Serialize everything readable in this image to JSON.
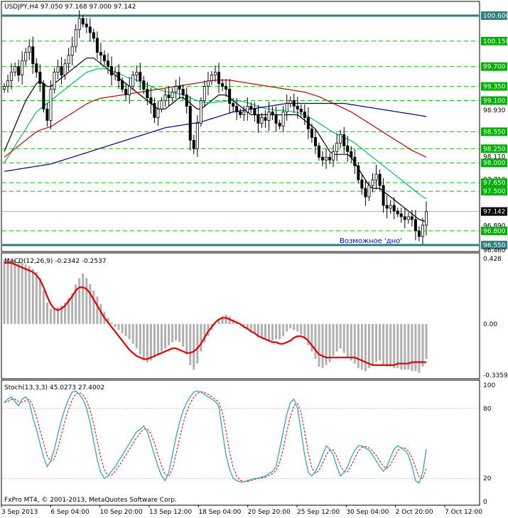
{
  "price_header": "USDJPY,H4  97.050 97.168 97.000 97.142",
  "macd_header": "MACD(12,26,9) -0.2342 -0.2537",
  "stoch_header": "Stoch(13,3,3) 45.0273 27.4002",
  "copyright": "FxPro MT4, © 2001-2013, MetaQuotes Software Corp.",
  "annotation": "Возможное 'дно'",
  "colors": {
    "candle": "#000000",
    "ma_fast": "#000000",
    "ma_green": "#00c060",
    "ma_red": "#c00000",
    "ma_blue": "#000080",
    "level_green": "#00c000",
    "level_thick": "#2f7f7f",
    "macd_hist": "#b0b0b0",
    "macd_signal": "#e00000",
    "stoch_main": "#20a0c0",
    "stoch_signal": "#e00000",
    "current_price_bg": "#000000",
    "level_label_bg": "#00b000",
    "annotation": "#0000c0"
  },
  "chart_data": [
    {
      "type": "candlestick",
      "symbol": "USDJPY",
      "timeframe": "H4",
      "ylim": [
        96.46,
        100.8
      ],
      "price_axis_labels": [
        "100.600",
        "100.150",
        "99.700",
        "99.350",
        "99.100",
        "98.930",
        "98.550",
        "98.250",
        "98.110",
        "98.000",
        "97.710",
        "97.650",
        "97.500",
        "97.142",
        "96.890",
        "96.800",
        "96.550",
        "96.460"
      ],
      "current_price": 97.142,
      "key_levels": [
        100.6,
        96.55
      ],
      "support_resistance_levels": [
        100.15,
        99.7,
        99.35,
        99.1,
        98.55,
        98.25,
        98.0,
        97.65,
        97.5,
        96.8
      ],
      "x_labels": [
        "3 Sep 2013",
        "6 Sep 04:00",
        "10 Sep 20:00",
        "13 Sep 12:00",
        "18 Sep 04:00",
        "20 Sep 20:00",
        "25 Sep 12:00",
        "30 Sep 04:00",
        "2 Oct 20:00",
        "7 Oct 12:00"
      ],
      "close": [
        99.35,
        99.45,
        99.6,
        99.7,
        99.55,
        99.8,
        99.95,
        100.05,
        99.75,
        99.6,
        99.4,
        98.95,
        98.75,
        99.3,
        99.6,
        99.7,
        99.55,
        99.75,
        99.9,
        100.05,
        100.35,
        100.55,
        100.45,
        100.4,
        100.3,
        100.2,
        99.95,
        99.9,
        99.8,
        99.7,
        99.55,
        99.6,
        99.45,
        99.3,
        99.2,
        99.35,
        99.55,
        99.6,
        99.45,
        99.3,
        99.15,
        99.05,
        98.8,
        98.95,
        99.1,
        99.2,
        99.15,
        99.25,
        99.35,
        99.3,
        99.2,
        99.0,
        98.4,
        98.25,
        98.7,
        99.1,
        99.35,
        99.45,
        99.55,
        99.6,
        99.4,
        99.35,
        99.3,
        99.05,
        99.0,
        98.9,
        98.85,
        98.9,
        99.0,
        98.95,
        98.85,
        98.7,
        98.8,
        98.75,
        98.9,
        98.85,
        98.7,
        98.65,
        98.9,
        99.05,
        99.1,
        99.0,
        98.95,
        98.9,
        98.8,
        98.6,
        98.45,
        98.3,
        98.1,
        98.05,
        98.1,
        98.05,
        98.2,
        98.35,
        98.5,
        98.3,
        98.2,
        98.1,
        97.95,
        97.7,
        97.55,
        97.4,
        97.6,
        97.7,
        97.8,
        97.6,
        97.25,
        97.2,
        97.25,
        97.15,
        97.1,
        97.05,
        97.0,
        97.05,
        97.0,
        96.8,
        96.7,
        96.9,
        97.14
      ],
      "series": [
        {
          "name": "",
          "kind": "ma",
          "values": [
            98.2,
            98.35,
            98.5,
            98.65,
            98.8,
            98.95,
            99.1,
            99.2,
            99.3,
            99.4,
            99.45,
            99.4,
            99.35,
            99.35,
            99.4,
            99.45,
            99.5,
            99.55,
            99.6,
            99.65,
            99.7,
            99.75,
            99.8,
            99.85,
            99.85,
            99.85,
            99.8,
            99.75,
            99.7,
            99.65,
            99.6,
            99.55,
            99.5,
            99.45,
            99.4,
            99.35,
            99.3,
            99.25,
            99.2,
            99.15,
            99.1,
            99.05,
            99.0,
            98.95,
            98.95,
            98.95,
            99.0,
            99.05,
            99.1,
            99.15,
            99.15,
            99.1,
            99.05,
            99.0,
            98.95,
            98.95,
            99.0,
            99.05,
            99.1,
            99.15,
            99.2,
            99.2,
            99.2,
            99.15,
            99.1,
            99.05,
            99.0,
            98.95,
            98.9,
            98.85,
            98.85,
            98.85,
            98.85,
            98.85,
            98.85,
            98.85,
            98.85,
            98.85,
            98.85,
            98.85,
            98.85,
            98.85,
            98.85,
            98.8,
            98.75,
            98.7,
            98.65,
            98.6,
            98.5,
            98.4,
            98.3,
            98.2,
            98.15,
            98.15,
            98.15,
            98.15,
            98.15,
            98.1,
            98.0,
            97.9,
            97.8,
            97.7,
            97.6,
            97.55,
            97.55,
            97.55,
            97.5,
            97.45,
            97.4,
            97.35,
            97.3,
            97.25,
            97.2,
            97.15,
            97.1,
            97.05,
            97.0,
            96.98,
            96.96
          ]
        },
        {
          "name": "",
          "kind": "ma",
          "values": [
            98.0,
            98.1,
            98.2,
            98.3,
            98.4,
            98.5,
            98.6,
            98.7,
            98.8,
            98.9,
            98.95,
            99.0,
            99.05,
            99.1,
            99.15,
            99.2,
            99.25,
            99.3,
            99.35,
            99.4,
            99.45,
            99.5,
            99.55,
            99.6,
            99.62,
            99.64,
            99.66,
            99.66,
            99.66,
            99.65,
            99.63,
            99.6,
            99.58,
            99.55,
            99.52,
            99.5,
            99.48,
            99.46,
            99.43,
            99.4,
            99.38,
            99.35,
            99.32,
            99.3,
            99.28,
            99.26,
            99.25,
            99.24,
            99.23,
            99.22,
            99.2,
            99.18,
            99.15,
            99.12,
            99.1,
            99.08,
            99.07,
            99.06,
            99.06,
            99.07,
            99.08,
            99.08,
            99.09,
            99.1,
            99.1,
            99.1,
            99.09,
            99.08,
            99.06,
            99.04,
            99.02,
            99.0,
            98.98,
            98.96,
            98.95,
            98.94,
            98.93,
            98.93,
            98.93,
            98.92,
            98.91,
            98.9,
            98.89,
            98.87,
            98.85,
            98.82,
            98.78,
            98.74,
            98.7,
            98.66,
            98.62,
            98.58,
            98.54,
            98.51,
            98.48,
            98.45,
            98.42,
            98.39,
            98.35,
            98.3,
            98.25,
            98.2,
            98.15,
            98.1,
            98.05,
            98.0,
            97.95,
            97.9,
            97.85,
            97.8,
            97.75,
            97.7,
            97.65,
            97.6,
            97.55,
            97.5,
            97.45,
            97.4,
            97.37
          ]
        },
        {
          "name": "",
          "kind": "ma",
          "values": [
            98.1,
            98.15,
            98.2,
            98.25,
            98.3,
            98.35,
            98.4,
            98.45,
            98.5,
            98.55,
            98.58,
            98.6,
            98.62,
            98.64,
            98.68,
            98.72,
            98.76,
            98.8,
            98.84,
            98.88,
            98.92,
            98.96,
            99.0,
            99.04,
            99.07,
            99.1,
            99.12,
            99.14,
            99.15,
            99.16,
            99.17,
            99.18,
            99.19,
            99.2,
            99.21,
            99.22,
            99.23,
            99.24,
            99.25,
            99.26,
            99.27,
            99.28,
            99.29,
            99.3,
            99.31,
            99.32,
            99.33,
            99.34,
            99.35,
            99.36,
            99.37,
            99.38,
            99.39,
            99.4,
            99.41,
            99.42,
            99.43,
            99.44,
            99.45,
            99.46,
            99.46,
            99.46,
            99.46,
            99.46,
            99.45,
            99.44,
            99.43,
            99.42,
            99.41,
            99.4,
            99.39,
            99.38,
            99.37,
            99.36,
            99.35,
            99.34,
            99.33,
            99.32,
            99.31,
            99.3,
            99.29,
            99.28,
            99.27,
            99.26,
            99.25,
            99.23,
            99.21,
            99.19,
            99.17,
            99.14,
            99.11,
            99.08,
            99.05,
            99.02,
            98.99,
            98.96,
            98.93,
            98.9,
            98.86,
            98.82,
            98.78,
            98.74,
            98.7,
            98.66,
            98.62,
            98.58,
            98.54,
            98.5,
            98.46,
            98.42,
            98.38,
            98.34,
            98.3,
            98.26,
            98.22,
            98.19,
            98.16,
            98.13,
            98.1
          ]
        },
        {
          "name": "",
          "kind": "ma",
          "values": [
            97.85,
            97.86,
            97.87,
            97.88,
            97.89,
            97.9,
            97.91,
            97.92,
            97.93,
            97.94,
            97.95,
            97.96,
            97.97,
            97.98,
            98.0,
            98.02,
            98.04,
            98.06,
            98.08,
            98.1,
            98.12,
            98.14,
            98.16,
            98.18,
            98.2,
            98.22,
            98.24,
            98.26,
            98.28,
            98.3,
            98.32,
            98.34,
            98.36,
            98.38,
            98.4,
            98.42,
            98.44,
            98.46,
            98.48,
            98.5,
            98.52,
            98.54,
            98.56,
            98.58,
            98.6,
            98.62,
            98.63,
            98.64,
            98.65,
            98.66,
            98.67,
            98.68,
            98.69,
            98.7,
            98.71,
            98.72,
            98.74,
            98.76,
            98.78,
            98.8,
            98.82,
            98.84,
            98.86,
            98.88,
            98.9,
            98.91,
            98.92,
            98.93,
            98.94,
            98.95,
            98.96,
            98.97,
            98.98,
            98.99,
            99.0,
            99.01,
            99.02,
            99.03,
            99.04,
            99.05,
            99.05,
            99.05,
            99.05,
            99.05,
            99.05,
            99.05,
            99.05,
            99.05,
            99.05,
            99.05,
            99.05,
            99.05,
            99.05,
            99.05,
            99.05,
            99.05,
            99.04,
            99.03,
            99.02,
            99.01,
            99.0,
            98.99,
            98.98,
            98.97,
            98.96,
            98.95,
            98.94,
            98.93,
            98.92,
            98.91,
            98.9,
            98.89,
            98.88,
            98.87,
            98.86,
            98.85,
            98.84,
            98.83,
            98.82
          ]
        }
      ]
    },
    {
      "type": "bar",
      "indicator": "MACD(12,26,9)",
      "ylim": [
        -0.3359,
        0.428
      ],
      "axis_labels": [
        "0.428",
        "0.00",
        "-0.3359"
      ],
      "histogram": [
        0.42,
        0.43,
        0.42,
        0.42,
        0.41,
        0.4,
        0.39,
        0.38,
        0.36,
        0.34,
        0.3,
        0.22,
        0.14,
        0.1,
        0.1,
        0.11,
        0.12,
        0.14,
        0.17,
        0.2,
        0.26,
        0.3,
        0.33,
        0.3,
        0.26,
        0.22,
        0.18,
        0.13,
        0.08,
        0.04,
        0.01,
        -0.02,
        -0.04,
        -0.06,
        -0.08,
        -0.1,
        -0.13,
        -0.16,
        -0.2,
        -0.24,
        -0.25,
        -0.24,
        -0.22,
        -0.2,
        -0.18,
        -0.16,
        -0.14,
        -0.12,
        -0.11,
        -0.12,
        -0.15,
        -0.2,
        -0.27,
        -0.3,
        -0.26,
        -0.18,
        -0.12,
        -0.08,
        -0.04,
        0.0,
        0.03,
        0.05,
        0.06,
        0.05,
        0.03,
        0.01,
        0.0,
        -0.02,
        -0.04,
        -0.05,
        -0.06,
        -0.08,
        -0.09,
        -0.1,
        -0.11,
        -0.11,
        -0.1,
        -0.1,
        -0.08,
        -0.05,
        -0.03,
        -0.04,
        -0.05,
        -0.07,
        -0.1,
        -0.14,
        -0.18,
        -0.23,
        -0.28,
        -0.29,
        -0.27,
        -0.25,
        -0.21,
        -0.18,
        -0.16,
        -0.19,
        -0.22,
        -0.24,
        -0.26,
        -0.29,
        -0.3,
        -0.31,
        -0.29,
        -0.27,
        -0.25,
        -0.24,
        -0.27,
        -0.28,
        -0.28,
        -0.29,
        -0.29,
        -0.3,
        -0.3,
        -0.3,
        -0.31,
        -0.31,
        -0.32,
        -0.28,
        -0.23
      ],
      "signal": [
        0.4,
        0.4,
        0.4,
        0.39,
        0.38,
        0.37,
        0.36,
        0.35,
        0.34,
        0.32,
        0.29,
        0.24,
        0.18,
        0.13,
        0.1,
        0.09,
        0.1,
        0.12,
        0.15,
        0.18,
        0.22,
        0.24,
        0.24,
        0.23,
        0.2,
        0.16,
        0.12,
        0.08,
        0.04,
        0.01,
        -0.02,
        -0.05,
        -0.08,
        -0.11,
        -0.14,
        -0.17,
        -0.19,
        -0.21,
        -0.22,
        -0.23,
        -0.23,
        -0.22,
        -0.21,
        -0.2,
        -0.19,
        -0.18,
        -0.17,
        -0.16,
        -0.16,
        -0.17,
        -0.18,
        -0.19,
        -0.19,
        -0.18,
        -0.16,
        -0.13,
        -0.09,
        -0.05,
        -0.02,
        0.01,
        0.03,
        0.04,
        0.04,
        0.03,
        0.02,
        0.01,
        0.0,
        -0.02,
        -0.03,
        -0.05,
        -0.06,
        -0.08,
        -0.09,
        -0.1,
        -0.11,
        -0.12,
        -0.12,
        -0.13,
        -0.13,
        -0.12,
        -0.11,
        -0.09,
        -0.08,
        -0.08,
        -0.09,
        -0.11,
        -0.14,
        -0.17,
        -0.2,
        -0.21,
        -0.22,
        -0.22,
        -0.22,
        -0.22,
        -0.22,
        -0.22,
        -0.22,
        -0.22,
        -0.22,
        -0.23,
        -0.24,
        -0.25,
        -0.26,
        -0.27,
        -0.27,
        -0.27,
        -0.27,
        -0.27,
        -0.27,
        -0.27,
        -0.26,
        -0.26,
        -0.26,
        -0.26,
        -0.25,
        -0.25,
        -0.25,
        -0.25,
        -0.25
      ]
    },
    {
      "type": "line",
      "indicator": "Stoch(13,3,3)",
      "ylim": [
        0,
        100
      ],
      "axis_labels": [
        "100",
        "80",
        "20",
        "0"
      ],
      "levels": [
        80,
        20
      ],
      "main": [
        85,
        88,
        90,
        86,
        82,
        88,
        90,
        85,
        72,
        62,
        50,
        38,
        30,
        35,
        45,
        58,
        70,
        80,
        88,
        94,
        95,
        92,
        88,
        80,
        68,
        52,
        36,
        25,
        20,
        22,
        26,
        30,
        35,
        40,
        45,
        50,
        55,
        60,
        62,
        65,
        60,
        50,
        40,
        30,
        22,
        18,
        25,
        40,
        55,
        68,
        78,
        85,
        90,
        94,
        95,
        94,
        92,
        90,
        88,
        86,
        82,
        60,
        40,
        28,
        20,
        18,
        17,
        17,
        18,
        19,
        20,
        20,
        21,
        22,
        24,
        26,
        30,
        45,
        60,
        75,
        85,
        88,
        80,
        60,
        40,
        25,
        22,
        26,
        32,
        40,
        48,
        45,
        40,
        30,
        22,
        25,
        30,
        38,
        44,
        48,
        48,
        46,
        44,
        40,
        35,
        30,
        26,
        30,
        38,
        45,
        48,
        46,
        44,
        40,
        30,
        18,
        16,
        25,
        45
      ]
    }
  ]
}
